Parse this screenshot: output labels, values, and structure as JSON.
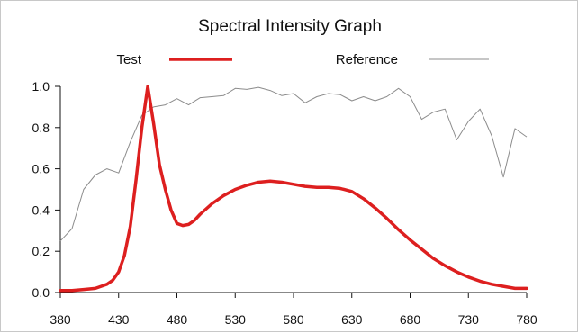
{
  "chart_data": {
    "type": "line",
    "title": "Spectral Intensity Graph",
    "xlabel": "",
    "ylabel": "",
    "xlim": [
      380,
      780
    ],
    "ylim": [
      0,
      1.0
    ],
    "x_ticks": [
      380,
      430,
      480,
      530,
      580,
      630,
      680,
      730,
      780
    ],
    "y_ticks": [
      0.0,
      0.2,
      0.4,
      0.6,
      0.8,
      1.0
    ],
    "y_tick_labels": [
      "0.0",
      "0.2",
      "0.4",
      "0.6",
      "0.8",
      "1.0"
    ],
    "legend_position": "top",
    "grid": false,
    "series": [
      {
        "name": "Test",
        "color": "#dd1f1f",
        "x": [
          380,
          390,
          400,
          410,
          415,
          420,
          425,
          430,
          435,
          440,
          445,
          450,
          455,
          460,
          465,
          470,
          475,
          480,
          485,
          490,
          495,
          500,
          510,
          520,
          530,
          540,
          550,
          560,
          570,
          580,
          590,
          600,
          610,
          620,
          630,
          640,
          650,
          660,
          670,
          680,
          690,
          700,
          710,
          720,
          730,
          740,
          750,
          760,
          770,
          780
        ],
        "y": [
          0.01,
          0.01,
          0.015,
          0.02,
          0.03,
          0.04,
          0.06,
          0.1,
          0.18,
          0.32,
          0.55,
          0.8,
          1.0,
          0.82,
          0.62,
          0.5,
          0.4,
          0.335,
          0.325,
          0.33,
          0.35,
          0.38,
          0.43,
          0.47,
          0.5,
          0.52,
          0.535,
          0.54,
          0.535,
          0.525,
          0.515,
          0.51,
          0.51,
          0.505,
          0.49,
          0.455,
          0.41,
          0.36,
          0.305,
          0.255,
          0.21,
          0.165,
          0.13,
          0.1,
          0.075,
          0.055,
          0.04,
          0.03,
          0.02,
          0.02
        ]
      },
      {
        "name": "Reference",
        "color": "#8c8c8c",
        "x": [
          380,
          390,
          400,
          410,
          420,
          430,
          440,
          450,
          460,
          470,
          480,
          490,
          500,
          510,
          520,
          530,
          540,
          550,
          560,
          570,
          580,
          590,
          600,
          610,
          620,
          630,
          640,
          650,
          660,
          670,
          680,
          690,
          700,
          710,
          720,
          730,
          740,
          750,
          760,
          770,
          780
        ],
        "y": [
          0.25,
          0.31,
          0.5,
          0.57,
          0.6,
          0.58,
          0.73,
          0.86,
          0.9,
          0.91,
          0.94,
          0.91,
          0.945,
          0.95,
          0.955,
          0.99,
          0.985,
          0.995,
          0.98,
          0.955,
          0.965,
          0.92,
          0.95,
          0.965,
          0.96,
          0.93,
          0.95,
          0.93,
          0.95,
          0.99,
          0.95,
          0.84,
          0.875,
          0.89,
          0.74,
          0.83,
          0.89,
          0.76,
          0.56,
          0.795,
          0.755
        ]
      }
    ]
  }
}
